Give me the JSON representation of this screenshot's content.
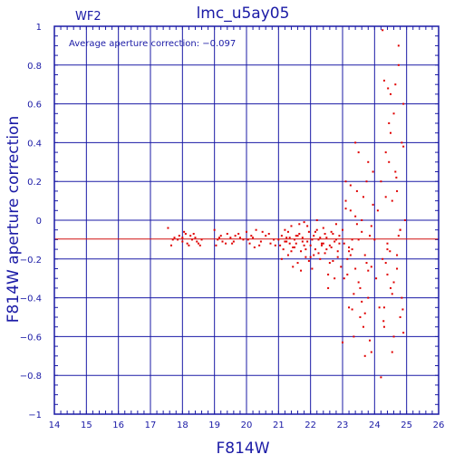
{
  "chart_data": {
    "type": "scatter",
    "title": "lmc_u5ay05",
    "chip_label": "WF2",
    "annotation": "Average aperture correction: −0.097",
    "xlabel": "F814W",
    "ylabel": "F814W aperture correction",
    "xlim": [
      14,
      26
    ],
    "ylim": [
      -1,
      1
    ],
    "xticks": [
      "14",
      "15",
      "16",
      "17",
      "18",
      "19",
      "20",
      "21",
      "22",
      "23",
      "24",
      "25",
      "26"
    ],
    "yticks": [
      "−1",
      "−0.8",
      "−0.6",
      "−0.4",
      "−0.2",
      "0",
      "0.2",
      "0.4",
      "0.6",
      "0.8",
      "1"
    ],
    "grid": true,
    "reference_line": -0.097,
    "colors": {
      "axes": "#1a1aa6",
      "points": "#e00000",
      "reference": "#d01010"
    },
    "series": [
      {
        "x": [
          17.55,
          17.75,
          17.9,
          18.0,
          18.1,
          18.2,
          18.3,
          18.4,
          18.5,
          17.65,
          17.85,
          18.05,
          18.25,
          18.45,
          17.7,
          18.15,
          18.35,
          18.0,
          18.6,
          18.55
        ],
        "y": [
          -0.04,
          -0.09,
          -0.08,
          -0.11,
          -0.07,
          -0.13,
          -0.1,
          -0.09,
          -0.12,
          -0.13,
          -0.1,
          -0.06,
          -0.08,
          -0.11,
          -0.1,
          -0.12,
          -0.07,
          -0.09,
          -0.1,
          -0.13
        ]
      },
      {
        "x": [
          19.0,
          19.1,
          19.2,
          19.35,
          19.5,
          19.6,
          19.75,
          19.9,
          20.0,
          20.1,
          20.2,
          20.3,
          20.45,
          20.6,
          20.75,
          20.9,
          19.05,
          19.4,
          19.8,
          20.25,
          20.5,
          20.85,
          19.25,
          19.65,
          20.05,
          20.4,
          20.7,
          19.15,
          19.55,
          20.15
        ],
        "y": [
          -0.05,
          -0.1,
          -0.08,
          -0.12,
          -0.09,
          -0.11,
          -0.07,
          -0.1,
          -0.06,
          -0.12,
          -0.09,
          -0.05,
          -0.11,
          -0.08,
          -0.12,
          -0.13,
          -0.13,
          -0.07,
          -0.09,
          -0.14,
          -0.06,
          -0.1,
          -0.11,
          -0.08,
          -0.1,
          -0.13,
          -0.07,
          -0.09,
          -0.12,
          -0.08
        ]
      },
      {
        "x": [
          21.0,
          21.05,
          21.1,
          21.15,
          21.2,
          21.25,
          21.3,
          21.35,
          21.4,
          21.45,
          21.5,
          21.55,
          21.6,
          21.65,
          21.7,
          21.75,
          21.8,
          21.85,
          21.9,
          21.95,
          22.0,
          22.05,
          22.1,
          22.15,
          22.2,
          22.25,
          22.3,
          22.35,
          22.4,
          22.45,
          22.5,
          22.55,
          22.6,
          22.65,
          22.7,
          22.75,
          22.8,
          22.85,
          22.9,
          22.95,
          21.1,
          21.3,
          21.5,
          21.7,
          21.9,
          22.1,
          22.3,
          22.5,
          22.7,
          22.9,
          21.2,
          21.4,
          21.6,
          21.8,
          22.0,
          22.2,
          22.4,
          22.6,
          22.8,
          21.25,
          21.45,
          21.65,
          21.85,
          22.05,
          22.25,
          22.45,
          22.65,
          22.85,
          21.35,
          21.55,
          21.75,
          21.95,
          22.15,
          22.35,
          22.55,
          22.75
        ],
        "y": [
          -0.1,
          -0.13,
          -0.08,
          -0.15,
          -0.05,
          -0.11,
          -0.18,
          -0.09,
          -0.03,
          -0.14,
          -0.1,
          -0.12,
          -0.22,
          -0.07,
          -0.16,
          -0.09,
          -0.01,
          -0.19,
          -0.11,
          -0.06,
          -0.13,
          -0.25,
          -0.08,
          -0.15,
          0.0,
          -0.1,
          -0.2,
          -0.12,
          -0.04,
          -0.17,
          -0.09,
          -0.28,
          -0.13,
          -0.06,
          -0.21,
          -0.11,
          -0.02,
          -0.16,
          -0.08,
          -0.24,
          -0.2,
          -0.06,
          -0.14,
          -0.26,
          -0.03,
          -0.18,
          -0.09,
          -0.15,
          -0.07,
          -0.12,
          -0.11,
          -0.16,
          -0.08,
          -0.13,
          -0.19,
          -0.05,
          -0.12,
          -0.22,
          -0.1,
          -0.09,
          -0.24,
          -0.02,
          -0.15,
          -0.1,
          -0.17,
          -0.07,
          -0.14,
          -0.19,
          -0.12,
          -0.08,
          -0.11,
          -0.21,
          -0.06,
          -0.13,
          -0.35,
          -0.3
        ]
      },
      {
        "x": [
          23.0,
          23.05,
          23.1,
          23.15,
          23.2,
          23.25,
          23.3,
          23.35,
          23.4,
          23.45,
          23.5,
          23.55,
          23.6,
          23.65,
          23.7,
          23.75,
          23.8,
          23.85,
          23.9,
          23.95,
          23.05,
          23.15,
          23.25,
          23.35,
          23.45,
          23.55,
          23.65,
          23.75,
          23.85,
          23.95,
          23.1,
          23.2,
          23.3,
          23.4,
          23.5,
          23.6,
          23.7,
          23.8,
          23.9,
          23.0,
          23.2,
          23.4,
          23.6,
          23.8,
          23.1,
          23.3,
          23.5,
          23.7,
          23.9,
          23.25
        ],
        "y": [
          -0.05,
          -0.3,
          0.1,
          -0.2,
          -0.45,
          0.05,
          -0.15,
          -0.6,
          -0.25,
          0.15,
          -0.1,
          -0.35,
          0.0,
          -0.55,
          -0.18,
          0.2,
          -0.4,
          -0.08,
          -0.68,
          0.25,
          -0.12,
          -0.28,
          0.18,
          -0.38,
          -0.02,
          -0.5,
          0.12,
          -0.22,
          -0.62,
          0.08,
          0.2,
          -0.16,
          -0.46,
          0.4,
          -0.32,
          -0.06,
          -0.7,
          0.3,
          -0.24,
          -0.63,
          -0.14,
          0.02,
          -0.42,
          -0.26,
          0.06,
          -0.1,
          0.35,
          -0.48,
          -0.03,
          -0.18
        ]
      },
      {
        "x": [
          24.0,
          24.05,
          24.1,
          24.15,
          24.2,
          24.25,
          24.3,
          24.35,
          24.4,
          24.45,
          24.5,
          24.55,
          24.6,
          24.65,
          24.7,
          24.75,
          24.8,
          24.85,
          24.9,
          24.95,
          24.2,
          24.3,
          24.4,
          24.5,
          24.6,
          24.7,
          24.8,
          24.9,
          24.25,
          24.35,
          24.45,
          24.55,
          24.65,
          24.75,
          24.85,
          24.3,
          24.5,
          24.7,
          24.9,
          24.4,
          24.6,
          24.8,
          24.35,
          24.55,
          24.75,
          24.28,
          24.48,
          24.68,
          24.88,
          24.42
        ],
        "y": [
          -0.1,
          -0.3,
          0.05,
          -0.45,
          0.2,
          -0.2,
          -0.55,
          0.35,
          -0.15,
          0.5,
          -0.35,
          0.1,
          -0.6,
          0.7,
          -0.25,
          0.9,
          -0.05,
          -0.4,
          0.6,
          0.0,
          -0.81,
          0.72,
          -0.12,
          0.45,
          -0.32,
          0.15,
          -0.5,
          -0.58,
          0.98,
          -0.22,
          0.3,
          -0.68,
          0.25,
          -0.08,
          0.4,
          -0.45,
          0.65,
          -0.18,
          0.38,
          -0.28,
          0.55,
          -0.05,
          0.12,
          -0.38,
          0.8,
          -0.52,
          -0.16,
          0.22,
          -0.46,
          0.68
        ]
      }
    ]
  }
}
